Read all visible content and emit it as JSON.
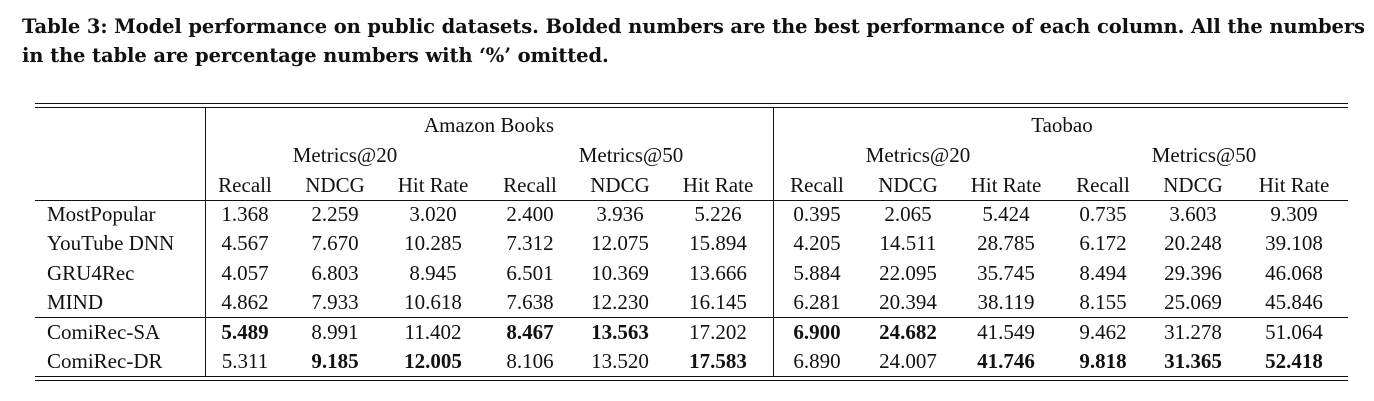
{
  "caption": "Table 3: Model performance on public datasets. Bolded numbers are the best performance of each column. All the numbers in the table are percentage numbers with ‘%’ omitted.",
  "datasets": [
    "Amazon Books",
    "Taobao"
  ],
  "metric_groups": [
    "Metrics@20",
    "Metrics@50",
    "Metrics@20",
    "Metrics@50"
  ],
  "columns": [
    "Recall",
    "NDCG",
    "Hit Rate",
    "Recall",
    "NDCG",
    "Hit Rate",
    "Recall",
    "NDCG",
    "Hit Rate",
    "Recall",
    "NDCG",
    "Hit Rate"
  ],
  "rows": [
    {
      "model": "MostPopular",
      "values": [
        "1.368",
        "2.259",
        "3.020",
        "2.400",
        "3.936",
        "5.226",
        "0.395",
        "2.065",
        "5.424",
        "0.735",
        "3.603",
        "9.309"
      ],
      "bold": []
    },
    {
      "model": "YouTube DNN",
      "values": [
        "4.567",
        "7.670",
        "10.285",
        "7.312",
        "12.075",
        "15.894",
        "4.205",
        "14.511",
        "28.785",
        "6.172",
        "20.248",
        "39.108"
      ],
      "bold": []
    },
    {
      "model": "GRU4Rec",
      "values": [
        "4.057",
        "6.803",
        "8.945",
        "6.501",
        "10.369",
        "13.666",
        "5.884",
        "22.095",
        "35.745",
        "8.494",
        "29.396",
        "46.068"
      ],
      "bold": []
    },
    {
      "model": "MIND",
      "values": [
        "4.862",
        "7.933",
        "10.618",
        "7.638",
        "12.230",
        "16.145",
        "6.281",
        "20.394",
        "38.119",
        "8.155",
        "25.069",
        "45.846"
      ],
      "bold": []
    },
    {
      "model": "ComiRec-SA",
      "values": [
        "5.489",
        "8.991",
        "11.402",
        "8.467",
        "13.563",
        "17.202",
        "6.900",
        "24.682",
        "41.549",
        "9.462",
        "31.278",
        "51.064"
      ],
      "bold": [
        0,
        3,
        4,
        6,
        7
      ]
    },
    {
      "model": "ComiRec-DR",
      "values": [
        "5.311",
        "9.185",
        "12.005",
        "8.106",
        "13.520",
        "17.583",
        "6.890",
        "24.007",
        "41.746",
        "9.818",
        "31.365",
        "52.418"
      ],
      "bold": [
        1,
        2,
        5,
        8,
        9,
        10,
        11
      ]
    }
  ]
}
